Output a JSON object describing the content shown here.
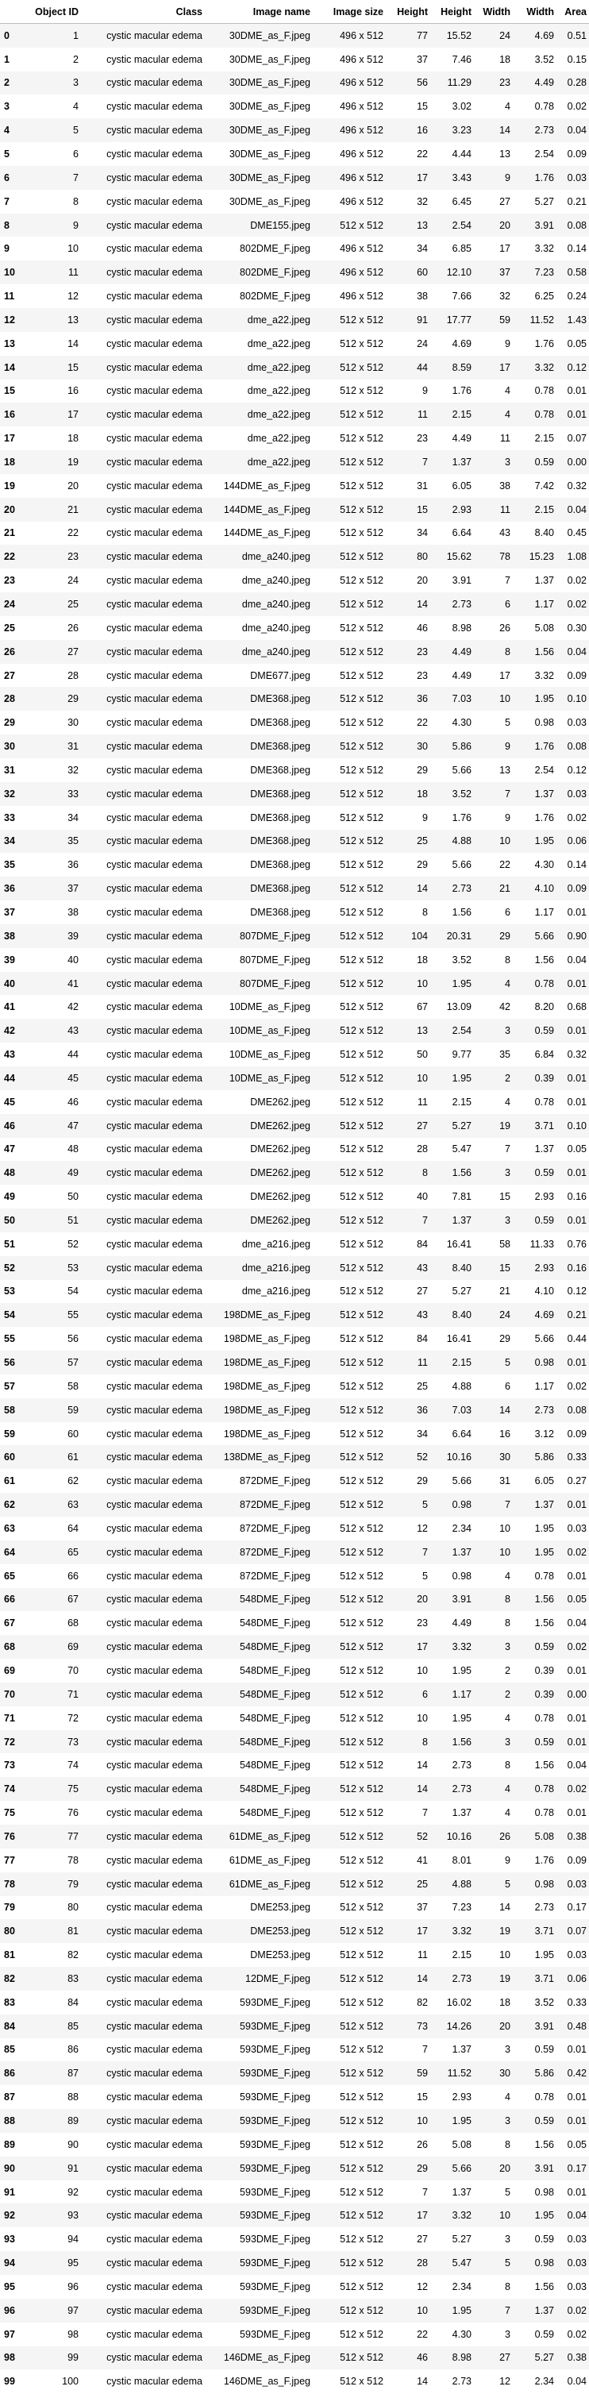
{
  "columns": [
    "",
    "Object ID",
    "Class",
    "Image name",
    "Image size",
    "Height",
    "Height",
    "Width",
    "Width",
    "Area"
  ],
  "rows": [
    [
      "0",
      "1",
      "cystic macular edema",
      "30DME_as_F.jpeg",
      "496 x 512",
      "77",
      "15.52",
      "24",
      "4.69",
      "0.51"
    ],
    [
      "1",
      "2",
      "cystic macular edema",
      "30DME_as_F.jpeg",
      "496 x 512",
      "37",
      "7.46",
      "18",
      "3.52",
      "0.15"
    ],
    [
      "2",
      "3",
      "cystic macular edema",
      "30DME_as_F.jpeg",
      "496 x 512",
      "56",
      "11.29",
      "23",
      "4.49",
      "0.28"
    ],
    [
      "3",
      "4",
      "cystic macular edema",
      "30DME_as_F.jpeg",
      "496 x 512",
      "15",
      "3.02",
      "4",
      "0.78",
      "0.02"
    ],
    [
      "4",
      "5",
      "cystic macular edema",
      "30DME_as_F.jpeg",
      "496 x 512",
      "16",
      "3.23",
      "14",
      "2.73",
      "0.04"
    ],
    [
      "5",
      "6",
      "cystic macular edema",
      "30DME_as_F.jpeg",
      "496 x 512",
      "22",
      "4.44",
      "13",
      "2.54",
      "0.09"
    ],
    [
      "6",
      "7",
      "cystic macular edema",
      "30DME_as_F.jpeg",
      "496 x 512",
      "17",
      "3.43",
      "9",
      "1.76",
      "0.03"
    ],
    [
      "7",
      "8",
      "cystic macular edema",
      "30DME_as_F.jpeg",
      "496 x 512",
      "32",
      "6.45",
      "27",
      "5.27",
      "0.21"
    ],
    [
      "8",
      "9",
      "cystic macular edema",
      "DME155.jpeg",
      "512 x 512",
      "13",
      "2.54",
      "20",
      "3.91",
      "0.08"
    ],
    [
      "9",
      "10",
      "cystic macular edema",
      "802DME_F.jpeg",
      "496 x 512",
      "34",
      "6.85",
      "17",
      "3.32",
      "0.14"
    ],
    [
      "10",
      "11",
      "cystic macular edema",
      "802DME_F.jpeg",
      "496 x 512",
      "60",
      "12.10",
      "37",
      "7.23",
      "0.58"
    ],
    [
      "11",
      "12",
      "cystic macular edema",
      "802DME_F.jpeg",
      "496 x 512",
      "38",
      "7.66",
      "32",
      "6.25",
      "0.24"
    ],
    [
      "12",
      "13",
      "cystic macular edema",
      "dme_a22.jpeg",
      "512 x 512",
      "91",
      "17.77",
      "59",
      "11.52",
      "1.43"
    ],
    [
      "13",
      "14",
      "cystic macular edema",
      "dme_a22.jpeg",
      "512 x 512",
      "24",
      "4.69",
      "9",
      "1.76",
      "0.05"
    ],
    [
      "14",
      "15",
      "cystic macular edema",
      "dme_a22.jpeg",
      "512 x 512",
      "44",
      "8.59",
      "17",
      "3.32",
      "0.12"
    ],
    [
      "15",
      "16",
      "cystic macular edema",
      "dme_a22.jpeg",
      "512 x 512",
      "9",
      "1.76",
      "4",
      "0.78",
      "0.01"
    ],
    [
      "16",
      "17",
      "cystic macular edema",
      "dme_a22.jpeg",
      "512 x 512",
      "11",
      "2.15",
      "4",
      "0.78",
      "0.01"
    ],
    [
      "17",
      "18",
      "cystic macular edema",
      "dme_a22.jpeg",
      "512 x 512",
      "23",
      "4.49",
      "11",
      "2.15",
      "0.07"
    ],
    [
      "18",
      "19",
      "cystic macular edema",
      "dme_a22.jpeg",
      "512 x 512",
      "7",
      "1.37",
      "3",
      "0.59",
      "0.00"
    ],
    [
      "19",
      "20",
      "cystic macular edema",
      "144DME_as_F.jpeg",
      "512 x 512",
      "31",
      "6.05",
      "38",
      "7.42",
      "0.32"
    ],
    [
      "20",
      "21",
      "cystic macular edema",
      "144DME_as_F.jpeg",
      "512 x 512",
      "15",
      "2.93",
      "11",
      "2.15",
      "0.04"
    ],
    [
      "21",
      "22",
      "cystic macular edema",
      "144DME_as_F.jpeg",
      "512 x 512",
      "34",
      "6.64",
      "43",
      "8.40",
      "0.45"
    ],
    [
      "22",
      "23",
      "cystic macular edema",
      "dme_a240.jpeg",
      "512 x 512",
      "80",
      "15.62",
      "78",
      "15.23",
      "1.08"
    ],
    [
      "23",
      "24",
      "cystic macular edema",
      "dme_a240.jpeg",
      "512 x 512",
      "20",
      "3.91",
      "7",
      "1.37",
      "0.02"
    ],
    [
      "24",
      "25",
      "cystic macular edema",
      "dme_a240.jpeg",
      "512 x 512",
      "14",
      "2.73",
      "6",
      "1.17",
      "0.02"
    ],
    [
      "25",
      "26",
      "cystic macular edema",
      "dme_a240.jpeg",
      "512 x 512",
      "46",
      "8.98",
      "26",
      "5.08",
      "0.30"
    ],
    [
      "26",
      "27",
      "cystic macular edema",
      "dme_a240.jpeg",
      "512 x 512",
      "23",
      "4.49",
      "8",
      "1.56",
      "0.04"
    ],
    [
      "27",
      "28",
      "cystic macular edema",
      "DME677.jpeg",
      "512 x 512",
      "23",
      "4.49",
      "17",
      "3.32",
      "0.09"
    ],
    [
      "28",
      "29",
      "cystic macular edema",
      "DME368.jpeg",
      "512 x 512",
      "36",
      "7.03",
      "10",
      "1.95",
      "0.10"
    ],
    [
      "29",
      "30",
      "cystic macular edema",
      "DME368.jpeg",
      "512 x 512",
      "22",
      "4.30",
      "5",
      "0.98",
      "0.03"
    ],
    [
      "30",
      "31",
      "cystic macular edema",
      "DME368.jpeg",
      "512 x 512",
      "30",
      "5.86",
      "9",
      "1.76",
      "0.08"
    ],
    [
      "31",
      "32",
      "cystic macular edema",
      "DME368.jpeg",
      "512 x 512",
      "29",
      "5.66",
      "13",
      "2.54",
      "0.12"
    ],
    [
      "32",
      "33",
      "cystic macular edema",
      "DME368.jpeg",
      "512 x 512",
      "18",
      "3.52",
      "7",
      "1.37",
      "0.03"
    ],
    [
      "33",
      "34",
      "cystic macular edema",
      "DME368.jpeg",
      "512 x 512",
      "9",
      "1.76",
      "9",
      "1.76",
      "0.02"
    ],
    [
      "34",
      "35",
      "cystic macular edema",
      "DME368.jpeg",
      "512 x 512",
      "25",
      "4.88",
      "10",
      "1.95",
      "0.06"
    ],
    [
      "35",
      "36",
      "cystic macular edema",
      "DME368.jpeg",
      "512 x 512",
      "29",
      "5.66",
      "22",
      "4.30",
      "0.14"
    ],
    [
      "36",
      "37",
      "cystic macular edema",
      "DME368.jpeg",
      "512 x 512",
      "14",
      "2.73",
      "21",
      "4.10",
      "0.09"
    ],
    [
      "37",
      "38",
      "cystic macular edema",
      "DME368.jpeg",
      "512 x 512",
      "8",
      "1.56",
      "6",
      "1.17",
      "0.01"
    ],
    [
      "38",
      "39",
      "cystic macular edema",
      "807DME_F.jpeg",
      "512 x 512",
      "104",
      "20.31",
      "29",
      "5.66",
      "0.90"
    ],
    [
      "39",
      "40",
      "cystic macular edema",
      "807DME_F.jpeg",
      "512 x 512",
      "18",
      "3.52",
      "8",
      "1.56",
      "0.04"
    ],
    [
      "40",
      "41",
      "cystic macular edema",
      "807DME_F.jpeg",
      "512 x 512",
      "10",
      "1.95",
      "4",
      "0.78",
      "0.01"
    ],
    [
      "41",
      "42",
      "cystic macular edema",
      "10DME_as_F.jpeg",
      "512 x 512",
      "67",
      "13.09",
      "42",
      "8.20",
      "0.68"
    ],
    [
      "42",
      "43",
      "cystic macular edema",
      "10DME_as_F.jpeg",
      "512 x 512",
      "13",
      "2.54",
      "3",
      "0.59",
      "0.01"
    ],
    [
      "43",
      "44",
      "cystic macular edema",
      "10DME_as_F.jpeg",
      "512 x 512",
      "50",
      "9.77",
      "35",
      "6.84",
      "0.32"
    ],
    [
      "44",
      "45",
      "cystic macular edema",
      "10DME_as_F.jpeg",
      "512 x 512",
      "10",
      "1.95",
      "2",
      "0.39",
      "0.01"
    ],
    [
      "45",
      "46",
      "cystic macular edema",
      "DME262.jpeg",
      "512 x 512",
      "11",
      "2.15",
      "4",
      "0.78",
      "0.01"
    ],
    [
      "46",
      "47",
      "cystic macular edema",
      "DME262.jpeg",
      "512 x 512",
      "27",
      "5.27",
      "19",
      "3.71",
      "0.10"
    ],
    [
      "47",
      "48",
      "cystic macular edema",
      "DME262.jpeg",
      "512 x 512",
      "28",
      "5.47",
      "7",
      "1.37",
      "0.05"
    ],
    [
      "48",
      "49",
      "cystic macular edema",
      "DME262.jpeg",
      "512 x 512",
      "8",
      "1.56",
      "3",
      "0.59",
      "0.01"
    ],
    [
      "49",
      "50",
      "cystic macular edema",
      "DME262.jpeg",
      "512 x 512",
      "40",
      "7.81",
      "15",
      "2.93",
      "0.16"
    ],
    [
      "50",
      "51",
      "cystic macular edema",
      "DME262.jpeg",
      "512 x 512",
      "7",
      "1.37",
      "3",
      "0.59",
      "0.01"
    ],
    [
      "51",
      "52",
      "cystic macular edema",
      "dme_a216.jpeg",
      "512 x 512",
      "84",
      "16.41",
      "58",
      "11.33",
      "0.76"
    ],
    [
      "52",
      "53",
      "cystic macular edema",
      "dme_a216.jpeg",
      "512 x 512",
      "43",
      "8.40",
      "15",
      "2.93",
      "0.16"
    ],
    [
      "53",
      "54",
      "cystic macular edema",
      "dme_a216.jpeg",
      "512 x 512",
      "27",
      "5.27",
      "21",
      "4.10",
      "0.12"
    ],
    [
      "54",
      "55",
      "cystic macular edema",
      "198DME_as_F.jpeg",
      "512 x 512",
      "43",
      "8.40",
      "24",
      "4.69",
      "0.21"
    ],
    [
      "55",
      "56",
      "cystic macular edema",
      "198DME_as_F.jpeg",
      "512 x 512",
      "84",
      "16.41",
      "29",
      "5.66",
      "0.44"
    ],
    [
      "56",
      "57",
      "cystic macular edema",
      "198DME_as_F.jpeg",
      "512 x 512",
      "11",
      "2.15",
      "5",
      "0.98",
      "0.01"
    ],
    [
      "57",
      "58",
      "cystic macular edema",
      "198DME_as_F.jpeg",
      "512 x 512",
      "25",
      "4.88",
      "6",
      "1.17",
      "0.02"
    ],
    [
      "58",
      "59",
      "cystic macular edema",
      "198DME_as_F.jpeg",
      "512 x 512",
      "36",
      "7.03",
      "14",
      "2.73",
      "0.08"
    ],
    [
      "59",
      "60",
      "cystic macular edema",
      "198DME_as_F.jpeg",
      "512 x 512",
      "34",
      "6.64",
      "16",
      "3.12",
      "0.09"
    ],
    [
      "60",
      "61",
      "cystic macular edema",
      "138DME_as_F.jpeg",
      "512 x 512",
      "52",
      "10.16",
      "30",
      "5.86",
      "0.33"
    ],
    [
      "61",
      "62",
      "cystic macular edema",
      "872DME_F.jpeg",
      "512 x 512",
      "29",
      "5.66",
      "31",
      "6.05",
      "0.27"
    ],
    [
      "62",
      "63",
      "cystic macular edema",
      "872DME_F.jpeg",
      "512 x 512",
      "5",
      "0.98",
      "7",
      "1.37",
      "0.01"
    ],
    [
      "63",
      "64",
      "cystic macular edema",
      "872DME_F.jpeg",
      "512 x 512",
      "12",
      "2.34",
      "10",
      "1.95",
      "0.03"
    ],
    [
      "64",
      "65",
      "cystic macular edema",
      "872DME_F.jpeg",
      "512 x 512",
      "7",
      "1.37",
      "10",
      "1.95",
      "0.02"
    ],
    [
      "65",
      "66",
      "cystic macular edema",
      "872DME_F.jpeg",
      "512 x 512",
      "5",
      "0.98",
      "4",
      "0.78",
      "0.01"
    ],
    [
      "66",
      "67",
      "cystic macular edema",
      "548DME_F.jpeg",
      "512 x 512",
      "20",
      "3.91",
      "8",
      "1.56",
      "0.05"
    ],
    [
      "67",
      "68",
      "cystic macular edema",
      "548DME_F.jpeg",
      "512 x 512",
      "23",
      "4.49",
      "8",
      "1.56",
      "0.04"
    ],
    [
      "68",
      "69",
      "cystic macular edema",
      "548DME_F.jpeg",
      "512 x 512",
      "17",
      "3.32",
      "3",
      "0.59",
      "0.02"
    ],
    [
      "69",
      "70",
      "cystic macular edema",
      "548DME_F.jpeg",
      "512 x 512",
      "10",
      "1.95",
      "2",
      "0.39",
      "0.01"
    ],
    [
      "70",
      "71",
      "cystic macular edema",
      "548DME_F.jpeg",
      "512 x 512",
      "6",
      "1.17",
      "2",
      "0.39",
      "0.00"
    ],
    [
      "71",
      "72",
      "cystic macular edema",
      "548DME_F.jpeg",
      "512 x 512",
      "10",
      "1.95",
      "4",
      "0.78",
      "0.01"
    ],
    [
      "72",
      "73",
      "cystic macular edema",
      "548DME_F.jpeg",
      "512 x 512",
      "8",
      "1.56",
      "3",
      "0.59",
      "0.01"
    ],
    [
      "73",
      "74",
      "cystic macular edema",
      "548DME_F.jpeg",
      "512 x 512",
      "14",
      "2.73",
      "8",
      "1.56",
      "0.04"
    ],
    [
      "74",
      "75",
      "cystic macular edema",
      "548DME_F.jpeg",
      "512 x 512",
      "14",
      "2.73",
      "4",
      "0.78",
      "0.02"
    ],
    [
      "75",
      "76",
      "cystic macular edema",
      "548DME_F.jpeg",
      "512 x 512",
      "7",
      "1.37",
      "4",
      "0.78",
      "0.01"
    ],
    [
      "76",
      "77",
      "cystic macular edema",
      "61DME_as_F.jpeg",
      "512 x 512",
      "52",
      "10.16",
      "26",
      "5.08",
      "0.38"
    ],
    [
      "77",
      "78",
      "cystic macular edema",
      "61DME_as_F.jpeg",
      "512 x 512",
      "41",
      "8.01",
      "9",
      "1.76",
      "0.09"
    ],
    [
      "78",
      "79",
      "cystic macular edema",
      "61DME_as_F.jpeg",
      "512 x 512",
      "25",
      "4.88",
      "5",
      "0.98",
      "0.03"
    ],
    [
      "79",
      "80",
      "cystic macular edema",
      "DME253.jpeg",
      "512 x 512",
      "37",
      "7.23",
      "14",
      "2.73",
      "0.17"
    ],
    [
      "80",
      "81",
      "cystic macular edema",
      "DME253.jpeg",
      "512 x 512",
      "17",
      "3.32",
      "19",
      "3.71",
      "0.07"
    ],
    [
      "81",
      "82",
      "cystic macular edema",
      "DME253.jpeg",
      "512 x 512",
      "11",
      "2.15",
      "10",
      "1.95",
      "0.03"
    ],
    [
      "82",
      "83",
      "cystic macular edema",
      "12DME_F.jpeg",
      "512 x 512",
      "14",
      "2.73",
      "19",
      "3.71",
      "0.06"
    ],
    [
      "83",
      "84",
      "cystic macular edema",
      "593DME_F.jpeg",
      "512 x 512",
      "82",
      "16.02",
      "18",
      "3.52",
      "0.33"
    ],
    [
      "84",
      "85",
      "cystic macular edema",
      "593DME_F.jpeg",
      "512 x 512",
      "73",
      "14.26",
      "20",
      "3.91",
      "0.48"
    ],
    [
      "85",
      "86",
      "cystic macular edema",
      "593DME_F.jpeg",
      "512 x 512",
      "7",
      "1.37",
      "3",
      "0.59",
      "0.01"
    ],
    [
      "86",
      "87",
      "cystic macular edema",
      "593DME_F.jpeg",
      "512 x 512",
      "59",
      "11.52",
      "30",
      "5.86",
      "0.42"
    ],
    [
      "87",
      "88",
      "cystic macular edema",
      "593DME_F.jpeg",
      "512 x 512",
      "15",
      "2.93",
      "4",
      "0.78",
      "0.01"
    ],
    [
      "88",
      "89",
      "cystic macular edema",
      "593DME_F.jpeg",
      "512 x 512",
      "10",
      "1.95",
      "3",
      "0.59",
      "0.01"
    ],
    [
      "89",
      "90",
      "cystic macular edema",
      "593DME_F.jpeg",
      "512 x 512",
      "26",
      "5.08",
      "8",
      "1.56",
      "0.05"
    ],
    [
      "90",
      "91",
      "cystic macular edema",
      "593DME_F.jpeg",
      "512 x 512",
      "29",
      "5.66",
      "20",
      "3.91",
      "0.17"
    ],
    [
      "91",
      "92",
      "cystic macular edema",
      "593DME_F.jpeg",
      "512 x 512",
      "7",
      "1.37",
      "5",
      "0.98",
      "0.01"
    ],
    [
      "92",
      "93",
      "cystic macular edema",
      "593DME_F.jpeg",
      "512 x 512",
      "17",
      "3.32",
      "10",
      "1.95",
      "0.04"
    ],
    [
      "93",
      "94",
      "cystic macular edema",
      "593DME_F.jpeg",
      "512 x 512",
      "27",
      "5.27",
      "3",
      "0.59",
      "0.03"
    ],
    [
      "94",
      "95",
      "cystic macular edema",
      "593DME_F.jpeg",
      "512 x 512",
      "28",
      "5.47",
      "5",
      "0.98",
      "0.03"
    ],
    [
      "95",
      "96",
      "cystic macular edema",
      "593DME_F.jpeg",
      "512 x 512",
      "12",
      "2.34",
      "8",
      "1.56",
      "0.03"
    ],
    [
      "96",
      "97",
      "cystic macular edema",
      "593DME_F.jpeg",
      "512 x 512",
      "10",
      "1.95",
      "7",
      "1.37",
      "0.02"
    ],
    [
      "97",
      "98",
      "cystic macular edema",
      "593DME_F.jpeg",
      "512 x 512",
      "22",
      "4.30",
      "3",
      "0.59",
      "0.02"
    ],
    [
      "98",
      "99",
      "cystic macular edema",
      "146DME_as_F.jpeg",
      "512 x 512",
      "46",
      "8.98",
      "27",
      "5.27",
      "0.38"
    ],
    [
      "99",
      "100",
      "cystic macular edema",
      "146DME_as_F.jpeg",
      "512 x 512",
      "14",
      "2.73",
      "12",
      "2.34",
      "0.04"
    ]
  ]
}
